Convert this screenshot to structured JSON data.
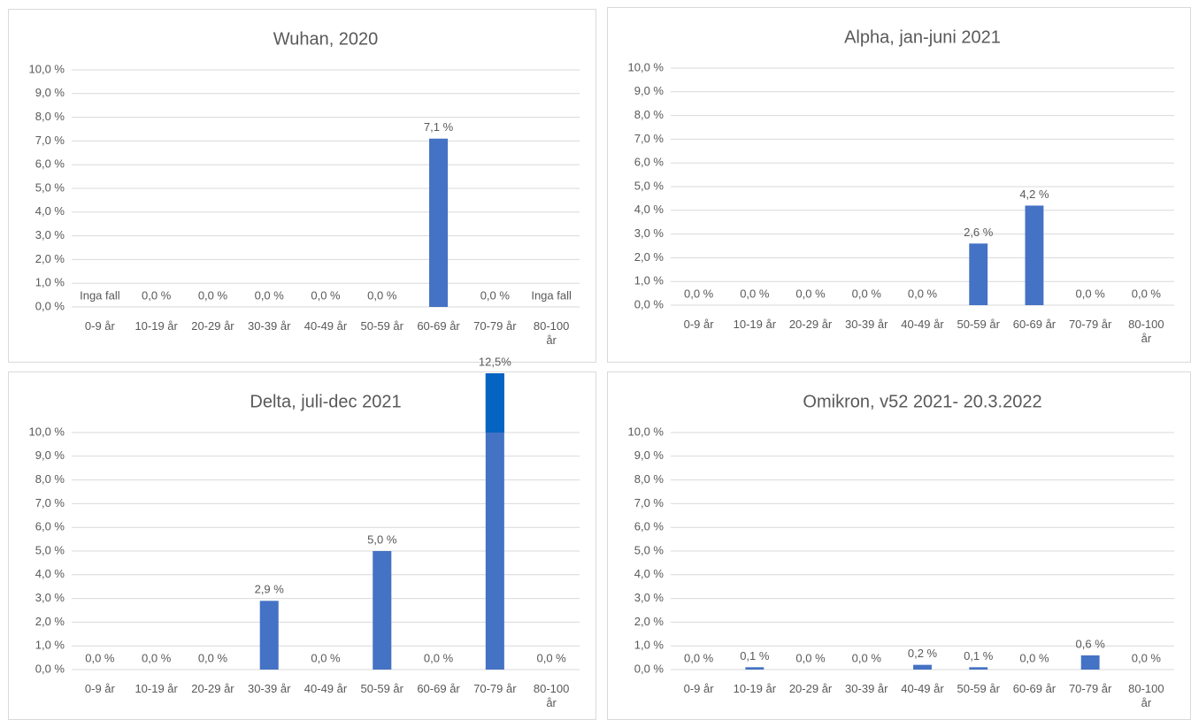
{
  "chart_data": [
    {
      "type": "bar",
      "title": "Wuhan, 2020",
      "color": "#4472c4",
      "categories": [
        "0-9 år",
        "10-19 år",
        "20-29 år",
        "30-39 år",
        "40-49 år",
        "50-59 år",
        "60-69 år",
        "70-79 år",
        "80-100 år"
      ],
      "values": [
        null,
        0,
        0,
        0,
        0,
        0,
        7.1,
        0,
        null
      ],
      "value_labels": [
        "Inga fall",
        "0,0 %",
        "0,0 %",
        "0,0 %",
        "0,0 %",
        "0,0 %",
        "7,1 %",
        "0,0 %",
        "Inga fall"
      ],
      "ylim": [
        0,
        10
      ],
      "yticks": [
        {
          "value": 0,
          "label": "0,0 %"
        },
        {
          "value": 1,
          "label": "1,0 %"
        },
        {
          "value": 2,
          "label": "2,0 %"
        },
        {
          "value": 3,
          "label": "3,0 %"
        },
        {
          "value": 4,
          "label": "4,0 %"
        },
        {
          "value": 5,
          "label": "5,0 %"
        },
        {
          "value": 6,
          "label": "6,0 %"
        },
        {
          "value": 7,
          "label": "7,0 %"
        },
        {
          "value": 8,
          "label": "8,0 %"
        },
        {
          "value": 9,
          "label": "9,0 %"
        },
        {
          "value": 10,
          "label": "10,0 %"
        }
      ],
      "grid": true
    },
    {
      "type": "bar",
      "title": "Alpha, jan-juni 2021",
      "color": "#4472c4",
      "categories": [
        "0-9 år",
        "10-19 år",
        "20-29 år",
        "30-39 år",
        "40-49 år",
        "50-59 år",
        "60-69 år",
        "70-79 år",
        "80-100 år"
      ],
      "values": [
        0,
        0,
        0,
        0,
        0,
        2.6,
        4.2,
        0,
        0
      ],
      "value_labels": [
        "0,0 %",
        "0,0 %",
        "0,0 %",
        "0,0 %",
        "0,0 %",
        "2,6 %",
        "4,2 %",
        "0,0 %",
        "0,0 %"
      ],
      "ylim": [
        0,
        10
      ],
      "yticks": [
        {
          "value": 0,
          "label": "0,0 %"
        },
        {
          "value": 1,
          "label": "1,0 %"
        },
        {
          "value": 2,
          "label": "2,0 %"
        },
        {
          "value": 3,
          "label": "3,0 %"
        },
        {
          "value": 4,
          "label": "4,0 %"
        },
        {
          "value": 5,
          "label": "5,0 %"
        },
        {
          "value": 6,
          "label": "6,0 %"
        },
        {
          "value": 7,
          "label": "7,0 %"
        },
        {
          "value": 8,
          "label": "8,0 %"
        },
        {
          "value": 9,
          "label": "9,0 %"
        },
        {
          "value": 10,
          "label": "10,0 %"
        }
      ],
      "grid": true
    },
    {
      "type": "bar",
      "title": "Delta, juli-dec 2021",
      "color": "#4472c4",
      "overflow_color": "#0563c1",
      "categories": [
        "0-9 år",
        "10-19 år",
        "20-29 år",
        "30-39 år",
        "40-49 år",
        "50-59 år",
        "60-69 år",
        "70-79 år",
        "80-100 år"
      ],
      "values": [
        0,
        0,
        0,
        2.9,
        0,
        5.0,
        0,
        12.5,
        0
      ],
      "value_labels": [
        "0,0 %",
        "0,0 %",
        "0,0 %",
        "2,9 %",
        "0,0 %",
        "5,0 %",
        "0,0 %",
        "12,5%",
        "0,0 %"
      ],
      "ylim": [
        0,
        10
      ],
      "yticks": [
        {
          "value": 0,
          "label": "0,0 %"
        },
        {
          "value": 1,
          "label": "1,0 %"
        },
        {
          "value": 2,
          "label": "2,0 %"
        },
        {
          "value": 3,
          "label": "3,0 %"
        },
        {
          "value": 4,
          "label": "4,0 %"
        },
        {
          "value": 5,
          "label": "5,0 %"
        },
        {
          "value": 6,
          "label": "6,0 %"
        },
        {
          "value": 7,
          "label": "7,0 %"
        },
        {
          "value": 8,
          "label": "8,0 %"
        },
        {
          "value": 9,
          "label": "9,0 %"
        },
        {
          "value": 10,
          "label": "10,0 %"
        }
      ],
      "grid": true
    },
    {
      "type": "bar",
      "title": "Omikron, v52 2021- 20.3.2022",
      "color": "#4472c4",
      "categories": [
        "0-9 år",
        "10-19 år",
        "20-29 år",
        "30-39 år",
        "40-49 år",
        "50-59 år",
        "60-69 år",
        "70-79 år",
        "80-100 år"
      ],
      "values": [
        0,
        0.1,
        0,
        0,
        0.2,
        0.1,
        0,
        0.6,
        0
      ],
      "value_labels": [
        "0,0 %",
        "0,1 %",
        "0,0 %",
        "0,0 %",
        "0,2 %",
        "0,1 %",
        "0,0 %",
        "0,6 %",
        "0,0 %"
      ],
      "ylim": [
        0,
        10
      ],
      "yticks": [
        {
          "value": 0,
          "label": "0,0 %"
        },
        {
          "value": 1,
          "label": "1,0 %"
        },
        {
          "value": 2,
          "label": "2,0 %"
        },
        {
          "value": 3,
          "label": "3,0 %"
        },
        {
          "value": 4,
          "label": "4,0 %"
        },
        {
          "value": 5,
          "label": "5,0 %"
        },
        {
          "value": 6,
          "label": "6,0 %"
        },
        {
          "value": 7,
          "label": "7,0 %"
        },
        {
          "value": 8,
          "label": "8,0 %"
        },
        {
          "value": 9,
          "label": "9,0 %"
        },
        {
          "value": 10,
          "label": "10,0 %"
        }
      ],
      "grid": true
    }
  ]
}
